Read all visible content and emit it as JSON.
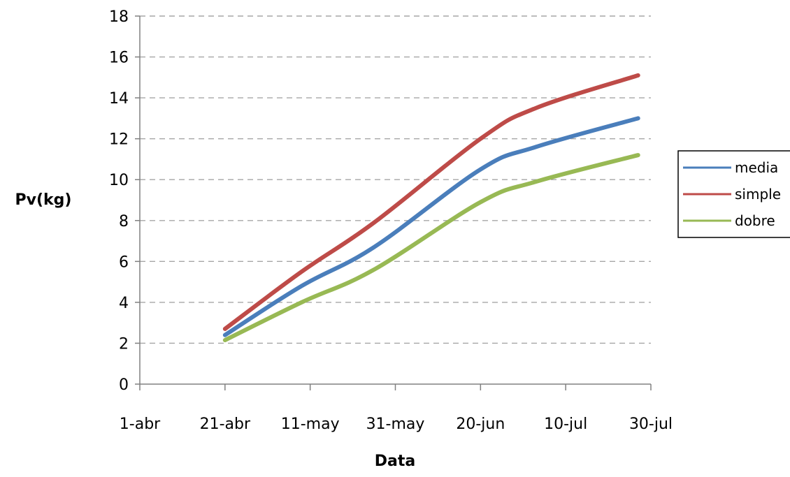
{
  "chart_data": {
    "type": "line",
    "xlabel": "Data",
    "ylabel": "Pv(kg)",
    "x_ticks": [
      "1-abr",
      "21-abr",
      "11-may",
      "31-may",
      "20-jun",
      "10-jul",
      "30-jul"
    ],
    "xlim": [
      "1-abr",
      "30-jul"
    ],
    "ylim": [
      0,
      18
    ],
    "y_ticks": [
      0,
      2,
      4,
      6,
      8,
      10,
      12,
      14,
      16,
      18
    ],
    "grid": "horizontal dashed",
    "legend_position": "right",
    "series": [
      {
        "name": "media",
        "color": "#4a7ebb",
        "points": [
          {
            "x": "21-abr",
            "y": 2.4
          },
          {
            "x": "9-may",
            "y": 4.8
          },
          {
            "x": "26-may",
            "y": 6.7
          },
          {
            "x": "20-jun",
            "y": 10.5
          },
          {
            "x": "3-jul",
            "y": 11.6
          },
          {
            "x": "27-jul",
            "y": 13.0
          }
        ]
      },
      {
        "name": "simple",
        "color": "#be4b48",
        "points": [
          {
            "x": "21-abr",
            "y": 2.7
          },
          {
            "x": "9-may",
            "y": 5.5
          },
          {
            "x": "26-may",
            "y": 7.9
          },
          {
            "x": "20-jun",
            "y": 12.0
          },
          {
            "x": "3-jul",
            "y": 13.5
          },
          {
            "x": "27-jul",
            "y": 15.1
          }
        ]
      },
      {
        "name": "dobre",
        "color": "#98b954",
        "points": [
          {
            "x": "21-abr",
            "y": 2.15
          },
          {
            "x": "9-may",
            "y": 4.0
          },
          {
            "x": "26-may",
            "y": 5.6
          },
          {
            "x": "20-jun",
            "y": 8.9
          },
          {
            "x": "3-jul",
            "y": 9.9
          },
          {
            "x": "27-jul",
            "y": 11.2
          }
        ]
      }
    ]
  }
}
